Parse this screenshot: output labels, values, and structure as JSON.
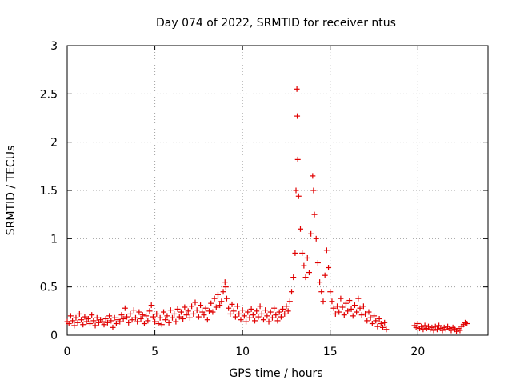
{
  "chart_data": {
    "type": "scatter",
    "title": "Day 074 of 2022, SRMTID for receiver ntus",
    "xlabel": "GPS time / hours",
    "ylabel": "SRMTID / TECUs",
    "xlim": [
      0,
      24
    ],
    "ylim": [
      0,
      3
    ],
    "xticks": [
      0,
      5,
      10,
      15,
      20
    ],
    "yticks": [
      0,
      0.5,
      1,
      1.5,
      2,
      2.5,
      3
    ],
    "grid": true,
    "marker": "plus",
    "color": "#e00000",
    "series": [
      {
        "name": "SRMTID",
        "points": [
          [
            0.0,
            0.14
          ],
          [
            0.1,
            0.12
          ],
          [
            0.2,
            0.2
          ],
          [
            0.3,
            0.15
          ],
          [
            0.4,
            0.1
          ],
          [
            0.5,
            0.18
          ],
          [
            0.6,
            0.13
          ],
          [
            0.7,
            0.22
          ],
          [
            0.8,
            0.16
          ],
          [
            0.9,
            0.11
          ],
          [
            1.0,
            0.19
          ],
          [
            1.1,
            0.14
          ],
          [
            1.2,
            0.17
          ],
          [
            1.3,
            0.12
          ],
          [
            1.4,
            0.21
          ],
          [
            1.5,
            0.15
          ],
          [
            1.6,
            0.1
          ],
          [
            1.7,
            0.18
          ],
          [
            1.8,
            0.13
          ],
          [
            1.9,
            0.16
          ],
          [
            2.0,
            0.14
          ],
          [
            2.1,
            0.11
          ],
          [
            2.2,
            0.17
          ],
          [
            2.3,
            0.13
          ],
          [
            2.4,
            0.2
          ],
          [
            2.5,
            0.15
          ],
          [
            2.6,
            0.08
          ],
          [
            2.7,
            0.18
          ],
          [
            2.8,
            0.12
          ],
          [
            2.9,
            0.16
          ],
          [
            3.0,
            0.14
          ],
          [
            3.1,
            0.21
          ],
          [
            3.2,
            0.17
          ],
          [
            3.3,
            0.28
          ],
          [
            3.4,
            0.19
          ],
          [
            3.5,
            0.13
          ],
          [
            3.6,
            0.22
          ],
          [
            3.7,
            0.16
          ],
          [
            3.8,
            0.26
          ],
          [
            3.9,
            0.18
          ],
          [
            4.0,
            0.14
          ],
          [
            4.1,
            0.24
          ],
          [
            4.2,
            0.17
          ],
          [
            4.3,
            0.21
          ],
          [
            4.4,
            0.12
          ],
          [
            4.5,
            0.2
          ],
          [
            4.6,
            0.15
          ],
          [
            4.7,
            0.25
          ],
          [
            4.8,
            0.31
          ],
          [
            4.9,
            0.19
          ],
          [
            5.0,
            0.14
          ],
          [
            5.1,
            0.22
          ],
          [
            5.2,
            0.12
          ],
          [
            5.3,
            0.18
          ],
          [
            5.4,
            0.11
          ],
          [
            5.5,
            0.24
          ],
          [
            5.6,
            0.16
          ],
          [
            5.7,
            0.2
          ],
          [
            5.8,
            0.13
          ],
          [
            5.9,
            0.26
          ],
          [
            6.0,
            0.18
          ],
          [
            6.1,
            0.22
          ],
          [
            6.2,
            0.14
          ],
          [
            6.3,
            0.27
          ],
          [
            6.4,
            0.19
          ],
          [
            6.5,
            0.24
          ],
          [
            6.6,
            0.17
          ],
          [
            6.7,
            0.29
          ],
          [
            6.8,
            0.21
          ],
          [
            6.9,
            0.25
          ],
          [
            7.0,
            0.18
          ],
          [
            7.1,
            0.3
          ],
          [
            7.2,
            0.22
          ],
          [
            7.3,
            0.34
          ],
          [
            7.4,
            0.26
          ],
          [
            7.5,
            0.19
          ],
          [
            7.6,
            0.31
          ],
          [
            7.7,
            0.24
          ],
          [
            7.8,
            0.21
          ],
          [
            7.9,
            0.28
          ],
          [
            8.0,
            0.16
          ],
          [
            8.1,
            0.25
          ],
          [
            8.2,
            0.33
          ],
          [
            8.3,
            0.24
          ],
          [
            8.4,
            0.38
          ],
          [
            8.5,
            0.29
          ],
          [
            8.6,
            0.42
          ],
          [
            8.7,
            0.31
          ],
          [
            8.8,
            0.35
          ],
          [
            8.9,
            0.45
          ],
          [
            9.0,
            0.55
          ],
          [
            9.05,
            0.5
          ],
          [
            9.1,
            0.38
          ],
          [
            9.2,
            0.28
          ],
          [
            9.3,
            0.22
          ],
          [
            9.4,
            0.32
          ],
          [
            9.5,
            0.25
          ],
          [
            9.6,
            0.19
          ],
          [
            9.7,
            0.3
          ],
          [
            9.8,
            0.22
          ],
          [
            9.9,
            0.16
          ],
          [
            10.0,
            0.26
          ],
          [
            10.1,
            0.2
          ],
          [
            10.2,
            0.14
          ],
          [
            10.3,
            0.24
          ],
          [
            10.4,
            0.18
          ],
          [
            10.5,
            0.27
          ],
          [
            10.6,
            0.21
          ],
          [
            10.7,
            0.15
          ],
          [
            10.8,
            0.25
          ],
          [
            10.9,
            0.19
          ],
          [
            11.0,
            0.3
          ],
          [
            11.1,
            0.22
          ],
          [
            11.2,
            0.16
          ],
          [
            11.3,
            0.26
          ],
          [
            11.4,
            0.2
          ],
          [
            11.5,
            0.14
          ],
          [
            11.6,
            0.24
          ],
          [
            11.7,
            0.18
          ],
          [
            11.8,
            0.28
          ],
          [
            11.9,
            0.21
          ],
          [
            12.0,
            0.15
          ],
          [
            12.1,
            0.24
          ],
          [
            12.2,
            0.19
          ],
          [
            12.3,
            0.27
          ],
          [
            12.4,
            0.22
          ],
          [
            12.5,
            0.3
          ],
          [
            12.6,
            0.25
          ],
          [
            12.7,
            0.35
          ],
          [
            12.8,
            0.45
          ],
          [
            12.9,
            0.6
          ],
          [
            13.0,
            0.85
          ],
          [
            13.05,
            1.5
          ],
          [
            13.1,
            2.55
          ],
          [
            13.12,
            2.27
          ],
          [
            13.15,
            1.82
          ],
          [
            13.2,
            1.44
          ],
          [
            13.3,
            1.1
          ],
          [
            13.4,
            0.85
          ],
          [
            13.5,
            0.72
          ],
          [
            13.6,
            0.6
          ],
          [
            13.7,
            0.8
          ],
          [
            13.8,
            0.65
          ],
          [
            13.9,
            1.05
          ],
          [
            14.0,
            1.65
          ],
          [
            14.05,
            1.5
          ],
          [
            14.1,
            1.25
          ],
          [
            14.2,
            1.0
          ],
          [
            14.3,
            0.75
          ],
          [
            14.4,
            0.55
          ],
          [
            14.5,
            0.45
          ],
          [
            14.6,
            0.35
          ],
          [
            14.7,
            0.62
          ],
          [
            14.8,
            0.88
          ],
          [
            14.9,
            0.7
          ],
          [
            15.0,
            0.45
          ],
          [
            15.1,
            0.35
          ],
          [
            15.2,
            0.28
          ],
          [
            15.3,
            0.22
          ],
          [
            15.4,
            0.3
          ],
          [
            15.5,
            0.24
          ],
          [
            15.6,
            0.38
          ],
          [
            15.7,
            0.29
          ],
          [
            15.8,
            0.21
          ],
          [
            15.9,
            0.33
          ],
          [
            16.0,
            0.25
          ],
          [
            16.1,
            0.36
          ],
          [
            16.2,
            0.27
          ],
          [
            16.3,
            0.2
          ],
          [
            16.4,
            0.31
          ],
          [
            16.5,
            0.24
          ],
          [
            16.6,
            0.38
          ],
          [
            16.7,
            0.28
          ],
          [
            16.8,
            0.21
          ],
          [
            16.9,
            0.3
          ],
          [
            17.0,
            0.22
          ],
          [
            17.1,
            0.15
          ],
          [
            17.2,
            0.24
          ],
          [
            17.3,
            0.18
          ],
          [
            17.4,
            0.12
          ],
          [
            17.5,
            0.2
          ],
          [
            17.6,
            0.15
          ],
          [
            17.7,
            0.09
          ],
          [
            17.8,
            0.17
          ],
          [
            17.9,
            0.12
          ],
          [
            18.0,
            0.08
          ],
          [
            18.1,
            0.13
          ],
          [
            18.2,
            0.06
          ],
          [
            19.8,
            0.1
          ],
          [
            19.9,
            0.08
          ],
          [
            20.0,
            0.12
          ],
          [
            20.1,
            0.07
          ],
          [
            20.2,
            0.09
          ],
          [
            20.3,
            0.06
          ],
          [
            20.4,
            0.1
          ],
          [
            20.5,
            0.07
          ],
          [
            20.6,
            0.09
          ],
          [
            20.7,
            0.06
          ],
          [
            20.8,
            0.08
          ],
          [
            20.9,
            0.05
          ],
          [
            21.0,
            0.09
          ],
          [
            21.1,
            0.06
          ],
          [
            21.2,
            0.1
          ],
          [
            21.3,
            0.07
          ],
          [
            21.4,
            0.05
          ],
          [
            21.5,
            0.08
          ],
          [
            21.6,
            0.06
          ],
          [
            21.7,
            0.09
          ],
          [
            21.8,
            0.07
          ],
          [
            21.9,
            0.05
          ],
          [
            22.0,
            0.08
          ],
          [
            22.1,
            0.06
          ],
          [
            22.2,
            0.04
          ],
          [
            22.3,
            0.07
          ],
          [
            22.4,
            0.05
          ],
          [
            22.5,
            0.09
          ],
          [
            22.6,
            0.11
          ],
          [
            22.7,
            0.13
          ],
          [
            22.8,
            0.12
          ]
        ]
      }
    ]
  }
}
